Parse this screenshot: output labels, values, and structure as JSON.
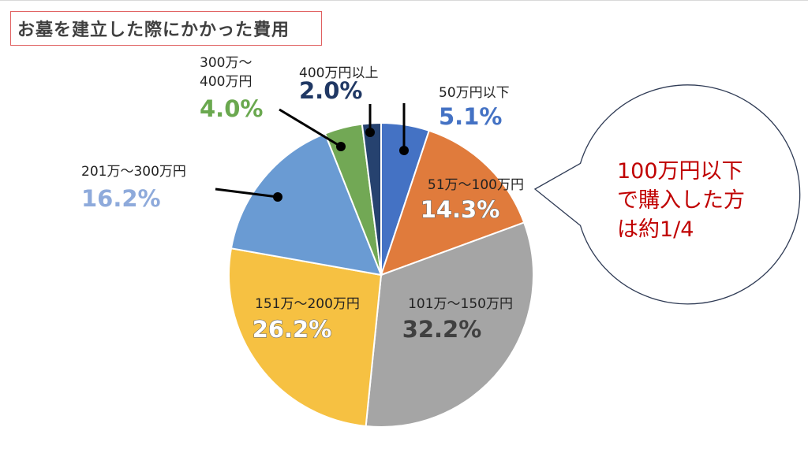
{
  "title": "お墓を建立した際にかかった費用",
  "chart_data": {
    "type": "pie",
    "categories": [
      "50万円以下",
      "51万〜100万円",
      "101万〜150万円",
      "151万〜200万円",
      "201万〜300万円",
      "300万〜400万円",
      "400万円以上"
    ],
    "values": [
      5.1,
      14.3,
      32.2,
      26.2,
      16.2,
      4.0,
      2.0
    ],
    "value_labels": [
      "5.1%",
      "14.3%",
      "32.2%",
      "26.2%",
      "16.2%",
      "4.0%",
      "2.0%"
    ],
    "label_lines": [
      [
        "50万円以下"
      ],
      [
        "51万〜100万円"
      ],
      [
        "101万〜150万円"
      ],
      [
        "151万〜200万円"
      ],
      [
        "201万〜300万円"
      ],
      [
        "300万〜",
        "400万円"
      ],
      [
        "400万円以上"
      ]
    ],
    "colors": [
      "#4472c4",
      "#e07b3c",
      "#a5a5a5",
      "#f6c142",
      "#6a9bd3",
      "#72a855",
      "#26426f"
    ],
    "label_colors": [
      "#4472c4",
      "#ffffff",
      "#404040",
      "#ffffff",
      "#8eaadb",
      "#6aa84f",
      "#203864"
    ],
    "legend": "none"
  },
  "callout": {
    "lines": [
      "100万円以下",
      "で購入した方",
      "は約1/4"
    ],
    "text_color": "#c00000"
  }
}
